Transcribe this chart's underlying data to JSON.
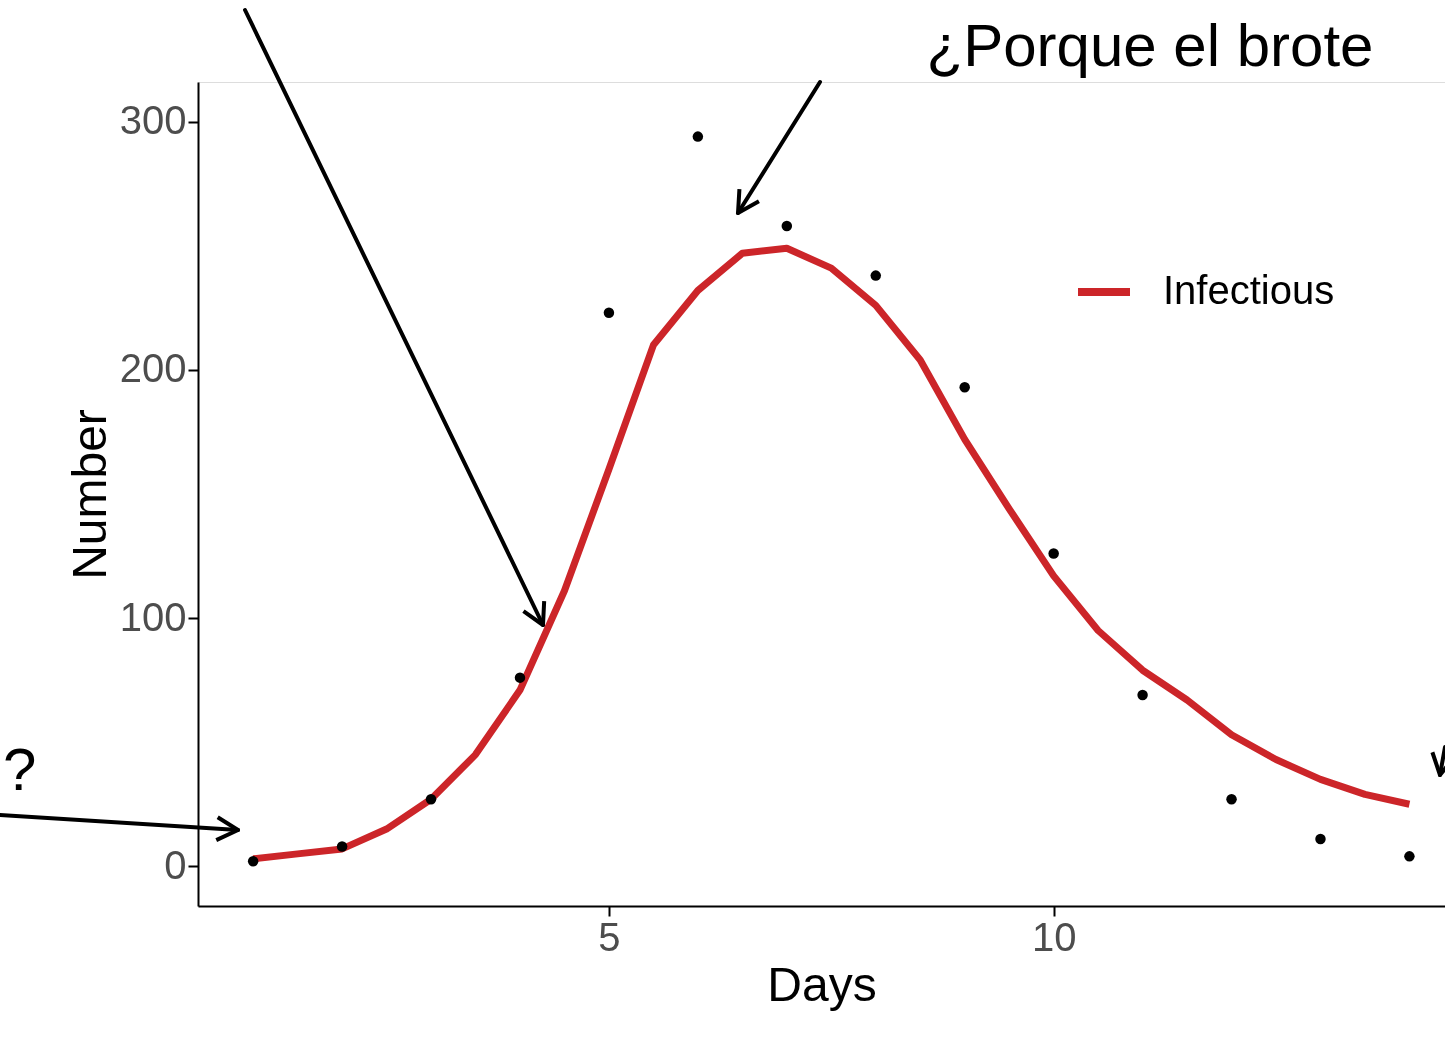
{
  "chart_data": {
    "type": "scatter",
    "xlabel": "Days",
    "ylabel": "Number",
    "annotations": [
      "¿Porque el brote",
      "?"
    ],
    "xlim": [
      0.38,
      14.4
    ],
    "xticks": [
      5,
      10
    ],
    "ylim": [
      -16,
      316
    ],
    "yticks": [
      0,
      100,
      200,
      300
    ],
    "grid": false,
    "legend": "top right",
    "series": [
      {
        "color": "#000000",
        "marker": "circle",
        "x": [
          1,
          2,
          3,
          4,
          5,
          6,
          7,
          8,
          9,
          10,
          11,
          12,
          13,
          14
        ],
        "values": [
          2,
          8,
          27,
          76,
          223,
          294,
          258,
          238,
          193,
          126,
          69,
          27,
          11,
          4
        ]
      },
      {
        "type": "line",
        "name": "Infectious",
        "color": "#cc2529",
        "line_style": "solid",
        "marker": "none",
        "x": [
          1,
          1.5,
          2,
          2.5,
          3,
          3.5,
          4,
          4.5,
          5,
          5.5,
          6,
          6.5,
          7,
          7.5,
          8,
          8.5,
          9,
          9.5,
          10,
          10.5,
          11,
          11.5,
          12,
          12.5,
          13,
          13.5,
          14
        ],
        "values": [
          3,
          5,
          7,
          15,
          27,
          45,
          71,
          111,
          160,
          210,
          232,
          247,
          249,
          241,
          226,
          204,
          172,
          144,
          117,
          95,
          79,
          67,
          53,
          43,
          35,
          29,
          25
        ]
      }
    ]
  }
}
